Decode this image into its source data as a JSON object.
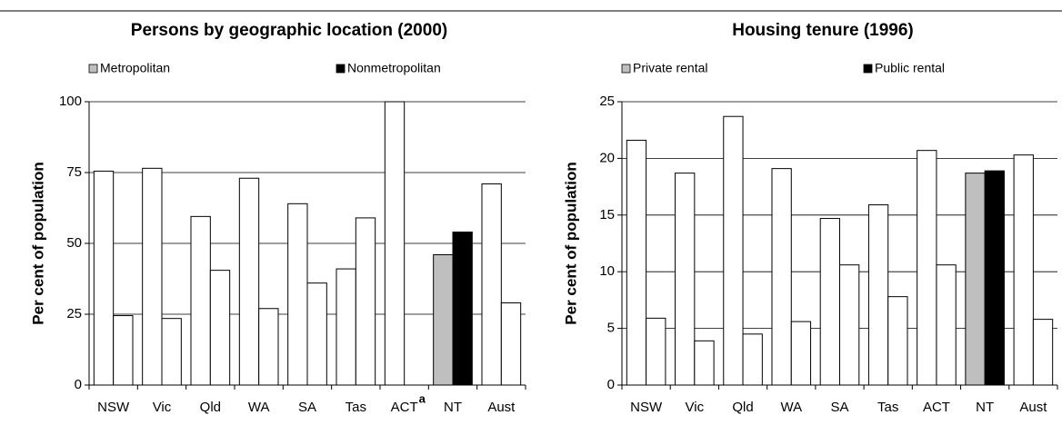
{
  "chart_data": [
    {
      "type": "bar",
      "title": "Persons by geographic location (2000)",
      "ylabel": "Per cent of population",
      "categories": [
        "NSW",
        "Vic",
        "Qld",
        "WA",
        "SA",
        "Tas",
        "ACT",
        "NT",
        "Aust"
      ],
      "category_notes": [
        null,
        null,
        null,
        null,
        null,
        null,
        "a",
        null,
        null
      ],
      "series": [
        {
          "name": "Metropolitan",
          "color": "#bfbfbf",
          "colors": [
            "#ffffff",
            "#ffffff",
            "#ffffff",
            "#ffffff",
            "#ffffff",
            "#ffffff",
            "#ffffff",
            "#bfbfbf",
            "#ffffff"
          ],
          "values": [
            75.5,
            76.5,
            59.5,
            73,
            64,
            41,
            100,
            46,
            71
          ]
        },
        {
          "name": "Nonmetropolitan",
          "color": "#000000",
          "colors": [
            "#ffffff",
            "#ffffff",
            "#ffffff",
            "#ffffff",
            "#ffffff",
            "#ffffff",
            "#ffffff",
            "#000000",
            "#ffffff"
          ],
          "values": [
            24.5,
            23.5,
            40.5,
            27,
            36,
            59,
            0,
            54,
            29
          ]
        }
      ],
      "ylim": [
        0,
        100
      ],
      "yticks": [
        0,
        25,
        50,
        75,
        100
      ],
      "grid": true
    },
    {
      "type": "bar",
      "title": "Housing tenure (1996)",
      "ylabel": "Per cent of population",
      "categories": [
        "NSW",
        "Vic",
        "Qld",
        "WA",
        "SA",
        "Tas",
        "ACT",
        "NT",
        "Aust"
      ],
      "series": [
        {
          "name": "Private rental",
          "color": "#bfbfbf",
          "colors": [
            "#ffffff",
            "#ffffff",
            "#ffffff",
            "#ffffff",
            "#ffffff",
            "#ffffff",
            "#ffffff",
            "#bfbfbf",
            "#ffffff"
          ],
          "values": [
            21.6,
            18.7,
            23.7,
            19.1,
            14.7,
            15.9,
            20.7,
            18.7,
            20.3
          ]
        },
        {
          "name": "Public rental",
          "color": "#000000",
          "colors": [
            "#ffffff",
            "#ffffff",
            "#ffffff",
            "#ffffff",
            "#ffffff",
            "#ffffff",
            "#ffffff",
            "#000000",
            "#ffffff"
          ],
          "values": [
            5.9,
            3.9,
            4.5,
            5.6,
            10.6,
            7.8,
            10.6,
            18.9,
            5.8
          ]
        }
      ],
      "ylim": [
        0,
        25
      ],
      "yticks": [
        0,
        5,
        10,
        15,
        20,
        25
      ],
      "grid": true
    }
  ]
}
